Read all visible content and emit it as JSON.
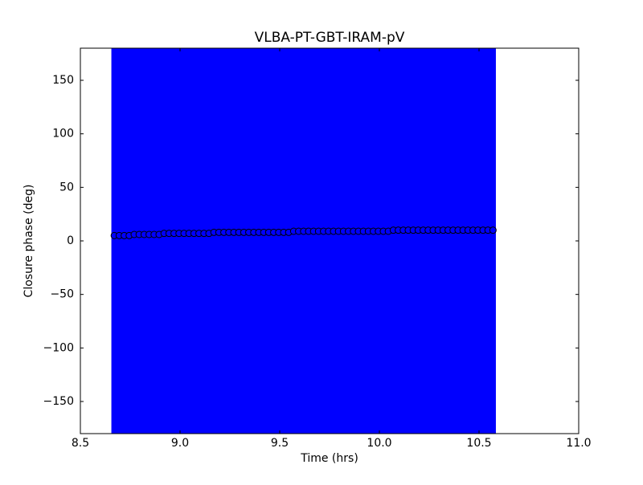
{
  "chart_data": {
    "type": "scatter",
    "title": "VLBA-PT-GBT-IRAM-pV",
    "x_label": "Time (hrs)",
    "y_label": "Closure phase (deg)",
    "xlim": [
      8.5,
      11.0
    ],
    "ylim": [
      -180,
      180
    ],
    "xticks": [
      8.5,
      {
        "value": 9.0,
        "label": "9.0"
      },
      9.5,
      {
        "value": 10.0,
        "label": "10.0"
      },
      10.5,
      {
        "value": 11.0,
        "label": "11.0"
      }
    ],
    "yticks": [
      {
        "value": -150,
        "label": "−150"
      },
      {
        "value": -100,
        "label": "−100"
      },
      {
        "value": -50,
        "label": "−50"
      },
      0,
      50,
      100,
      150
    ],
    "grid": false,
    "series": [
      {
        "color": "#0000ff",
        "edge_color": "#000000",
        "yerr": 200,
        "x": [
          8.67,
          8.695,
          8.72,
          8.745,
          8.77,
          8.795,
          8.82,
          8.845,
          8.87,
          8.895,
          8.92,
          8.945,
          8.97,
          8.995,
          9.02,
          9.045,
          9.07,
          9.095,
          9.12,
          9.145,
          9.17,
          9.195,
          9.22,
          9.245,
          9.27,
          9.295,
          9.32,
          9.345,
          9.37,
          9.395,
          9.42,
          9.445,
          9.47,
          9.495,
          9.52,
          9.545,
          9.57,
          9.595,
          9.62,
          9.645,
          9.67,
          9.695,
          9.72,
          9.745,
          9.77,
          9.795,
          9.82,
          9.845,
          9.87,
          9.895,
          9.92,
          9.945,
          9.97,
          9.995,
          10.02,
          10.045,
          10.07,
          10.095,
          10.12,
          10.145,
          10.17,
          10.195,
          10.22,
          10.245,
          10.27,
          10.295,
          10.32,
          10.345,
          10.37,
          10.395,
          10.42,
          10.445,
          10.47,
          10.495,
          10.52,
          10.545,
          10.57
        ],
        "values": [
          5,
          5,
          5,
          5,
          6,
          6,
          6,
          6,
          6,
          6,
          7,
          7,
          7,
          7,
          7,
          7,
          7,
          7,
          7,
          7,
          8,
          8,
          8,
          8,
          8,
          8,
          8,
          8,
          8,
          8,
          8,
          8,
          8,
          8,
          8,
          8,
          9,
          9,
          9,
          9,
          9,
          9,
          9,
          9,
          9,
          9,
          9,
          9,
          9,
          9,
          9,
          9,
          9,
          9,
          9,
          9,
          10,
          10,
          10,
          10,
          10,
          10,
          10,
          10,
          10,
          10,
          10,
          10,
          10,
          10,
          10,
          10,
          10,
          10,
          10,
          10,
          10
        ]
      }
    ]
  }
}
